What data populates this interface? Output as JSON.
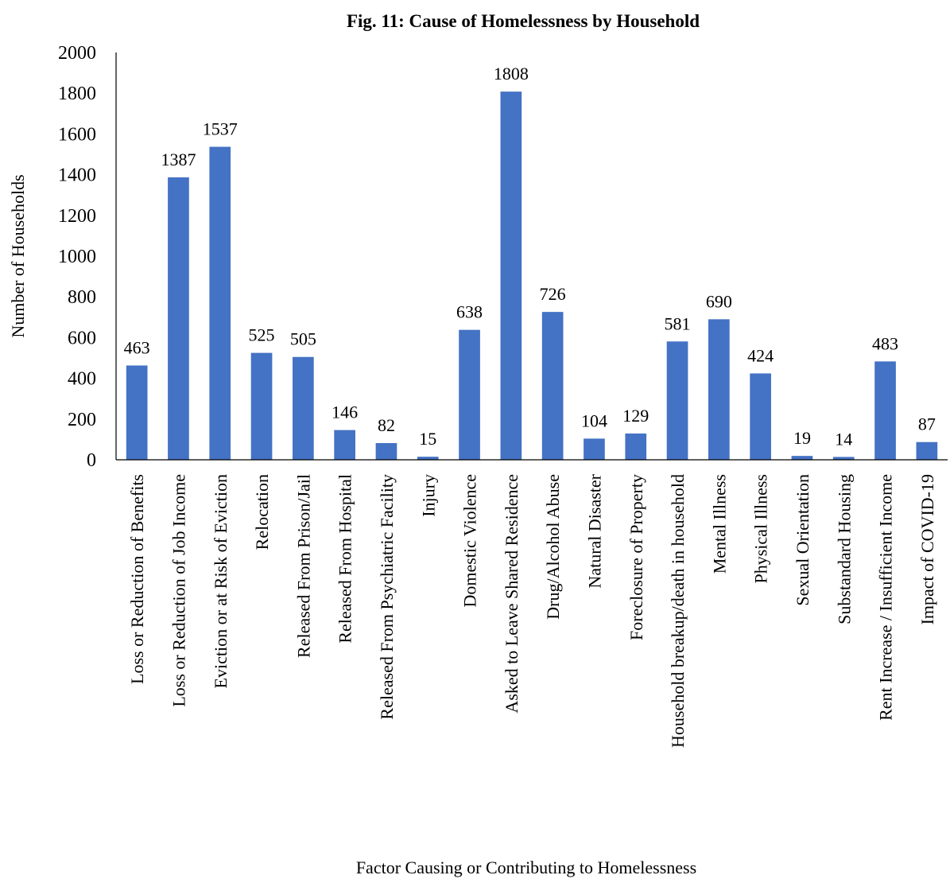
{
  "chart_data": {
    "type": "bar",
    "title": "Fig. 11: Cause of Homelessness by Household",
    "xlabel": "Factor Causing or Contributing to Homelessness",
    "ylabel": "Number of Households",
    "ylim": [
      0,
      2000
    ],
    "yticks": [
      0,
      200,
      400,
      600,
      800,
      1000,
      1200,
      1400,
      1600,
      1800,
      2000
    ],
    "grid": false,
    "legend": "none",
    "bar_color": "#4472C4",
    "categories": [
      "Loss or Reduction of Benefits",
      "Loss or Reduction of Job Income",
      "Eviction or at Risk of Eviction",
      "Relocation",
      "Released From Prison/Jail",
      "Released From Hospital",
      "Released From Psychiatric Facility",
      "Injury",
      "Domestic Violence",
      "Asked to Leave Shared Residence",
      "Drug/Alcohol Abuse",
      "Natural Disaster",
      "Foreclosure of Property",
      "Household breakup/death in household",
      "Mental Illness",
      "Physical Illness",
      "Sexual Orientation",
      "Substandard Housing",
      "Rent Increase / Insufficient Income",
      "Impact of COVID-19"
    ],
    "values": [
      463,
      1387,
      1537,
      525,
      505,
      146,
      82,
      15,
      638,
      1808,
      726,
      104,
      129,
      581,
      690,
      424,
      19,
      14,
      483,
      87
    ]
  }
}
